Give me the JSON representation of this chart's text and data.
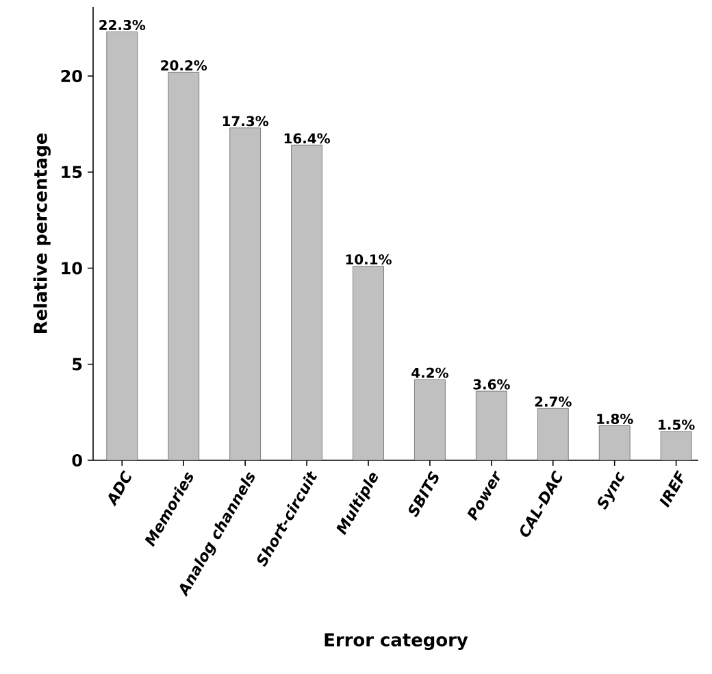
{
  "chart_data": {
    "type": "bar",
    "xlabel": "Error category",
    "ylabel": "Relative percentage",
    "categories": [
      "ADC",
      "Memories",
      "Analog channels",
      "Short-circuit",
      "Multiple",
      "SBITS",
      "Power",
      "CAL-DAC",
      "Sync",
      "IREF"
    ],
    "values": [
      22.3,
      20.2,
      17.3,
      16.4,
      10.1,
      4.2,
      3.6,
      2.7,
      1.8,
      1.5
    ],
    "value_labels": [
      "22.3%",
      "20.2%",
      "17.3%",
      "16.4%",
      "10.1%",
      "4.2%",
      "3.6%",
      "2.7%",
      "1.8%",
      "1.5%"
    ],
    "color": "#c0c0c0",
    "ylim": [
      0,
      23.6
    ],
    "yticks": [
      0,
      5,
      10,
      15,
      20
    ]
  }
}
